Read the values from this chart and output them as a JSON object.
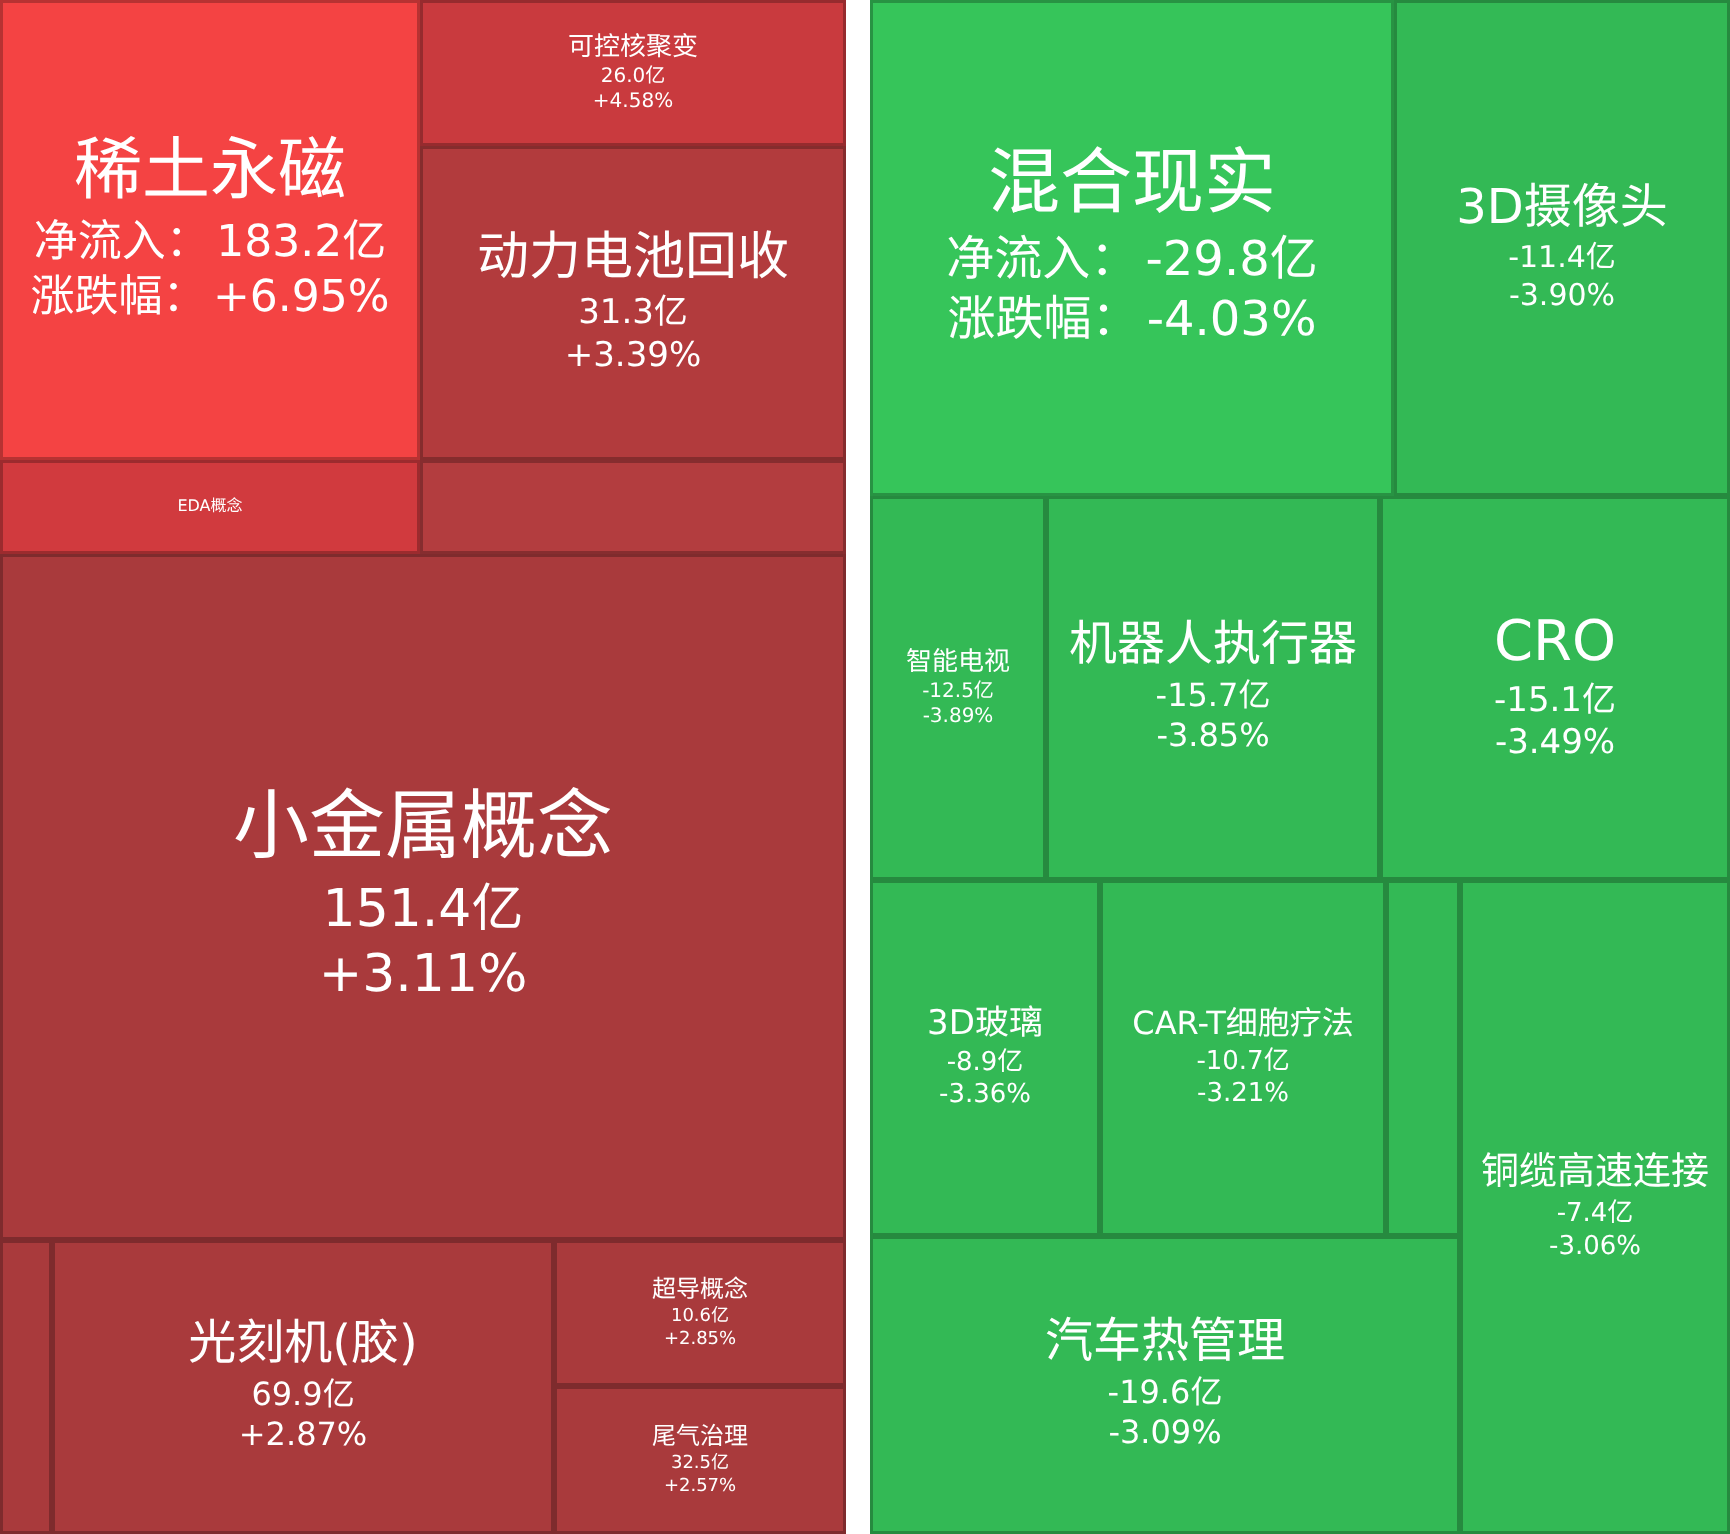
{
  "chart_data": [
    {
      "type": "other",
      "categories": [
        "稀土永磁",
        "可控核聚变",
        "动力电池回收",
        "EDA概念",
        null,
        "小金属概念",
        null,
        "光刻机(胶)",
        "超导概念",
        "尾气治理"
      ],
      "series": [
        {
          "name": "净流入：",
          "colors": [
            "#f44343",
            "#c93a3e",
            "#b23b3d",
            "#d13a3e",
            "#b33d3f",
            "#a93a3c",
            "#a93a3c",
            "#a93a3c",
            "#a93a3c",
            "#a93a3c"
          ],
          "values": [
            183.2,
            26.0,
            31.3,
            null,
            null,
            151.4,
            null,
            69.9,
            10.6,
            32.5
          ],
          "value_labels": [
            "183.2亿",
            "26.0亿",
            "31.3亿",
            null,
            null,
            "151.4亿",
            null,
            "69.9亿",
            "10.6亿",
            "32.5亿"
          ]
        },
        {
          "name": "涨跌幅：",
          "values": [
            6.95,
            4.58,
            3.39,
            null,
            null,
            3.11,
            null,
            2.87,
            2.85,
            2.57
          ],
          "value_labels": [
            "+6.95%",
            "+4.58%",
            "+3.39%",
            null,
            null,
            "+3.11%",
            null,
            "+2.87%",
            "+2.85%",
            "+2.57%"
          ]
        }
      ]
    },
    {
      "type": "other",
      "categories": [
        "混合现实",
        "3D摄像头",
        "智能电视",
        "机器人执行器",
        "CRO",
        "3D玻璃",
        "CAR-T细胞疗法",
        null,
        "铜缆高速连接",
        "汽车热管理"
      ],
      "series": [
        {
          "name": "净流入：",
          "colors": [
            "#36c55a",
            "#33b955",
            "#33b955",
            "#33b955",
            "#33b955",
            "#33b955",
            "#33b955",
            "#33b955",
            "#33b955",
            "#33b955"
          ],
          "values": [
            -29.8,
            -11.4,
            -12.5,
            -15.7,
            -15.1,
            -8.9,
            -10.7,
            null,
            -7.4,
            -19.6
          ],
          "value_labels": [
            "-29.8亿",
            "-11.4亿",
            "-12.5亿",
            "-15.7亿",
            "-15.1亿",
            "-8.9亿",
            "-10.7亿",
            null,
            "-7.4亿",
            "-19.6亿"
          ]
        },
        {
          "name": "涨跌幅：",
          "values": [
            -4.03,
            -3.9,
            -3.89,
            -3.85,
            -3.49,
            -3.36,
            -3.21,
            null,
            -3.06,
            -3.09
          ],
          "value_labels": [
            "-4.03%",
            "-3.90%",
            "-3.89%",
            "-3.85%",
            "-3.49%",
            "-3.36%",
            "-3.21%",
            null,
            "-3.06%",
            "-3.09%"
          ]
        }
      ]
    }
  ]
}
